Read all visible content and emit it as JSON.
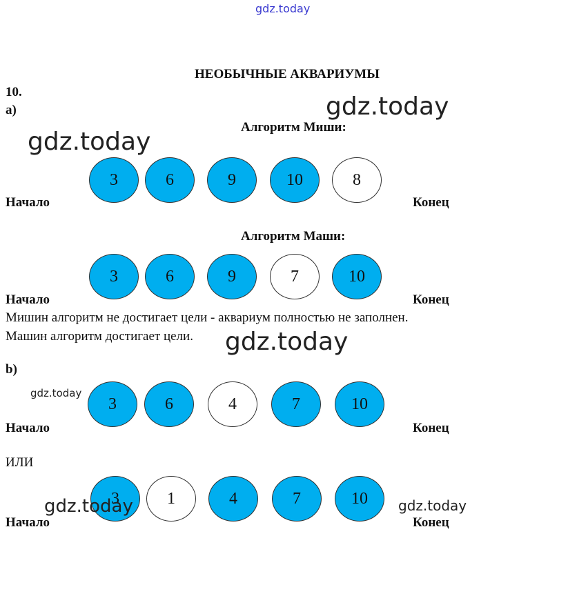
{
  "watermarks": [
    "gdz.today",
    "gdz.today",
    "gdz.today",
    "gdz.today",
    "gdz.today",
    "gdz.today",
    "gdz.today"
  ],
  "title": "НЕОБЫЧНЫЕ АКВАРИУМЫ",
  "task_number": "10.",
  "part_a": {
    "label": "а)",
    "rows": [
      {
        "heading": "Алгоритм Миши:",
        "start": "Начало",
        "end": "Конец",
        "cells": [
          {
            "number": 3,
            "filled": true
          },
          {
            "number": 6,
            "filled": true
          },
          {
            "number": 9,
            "filled": true
          },
          {
            "number": 10,
            "filled": true
          },
          {
            "number": 8,
            "filled": false
          }
        ]
      },
      {
        "heading": "Алгоритм Маши:",
        "start": "Начало",
        "end": "Конец",
        "cells": [
          {
            "number": 3,
            "filled": true
          },
          {
            "number": 6,
            "filled": true
          },
          {
            "number": 9,
            "filled": true
          },
          {
            "number": 7,
            "filled": false
          },
          {
            "number": 10,
            "filled": true
          }
        ]
      }
    ],
    "conclusions": [
      "Мишин алгоритм не достигает цели - аквариум полностью не заполнен.",
      "Машин алгоритм достигает цели."
    ]
  },
  "part_b": {
    "label": "b)",
    "or": "ИЛИ",
    "rows": [
      {
        "start": "Начало",
        "end": "Конец",
        "cells": [
          {
            "number": 3,
            "filled": true
          },
          {
            "number": 6,
            "filled": true
          },
          {
            "number": 4,
            "filled": false
          },
          {
            "number": 7,
            "filled": true
          },
          {
            "number": 10,
            "filled": true
          }
        ]
      },
      {
        "start": "Начало",
        "end": "Конец",
        "cells": [
          {
            "number": 3,
            "filled": true
          },
          {
            "number": 1,
            "filled": false
          },
          {
            "number": 4,
            "filled": true
          },
          {
            "number": 7,
            "filled": true
          },
          {
            "number": 10,
            "filled": true
          }
        ]
      }
    ]
  }
}
